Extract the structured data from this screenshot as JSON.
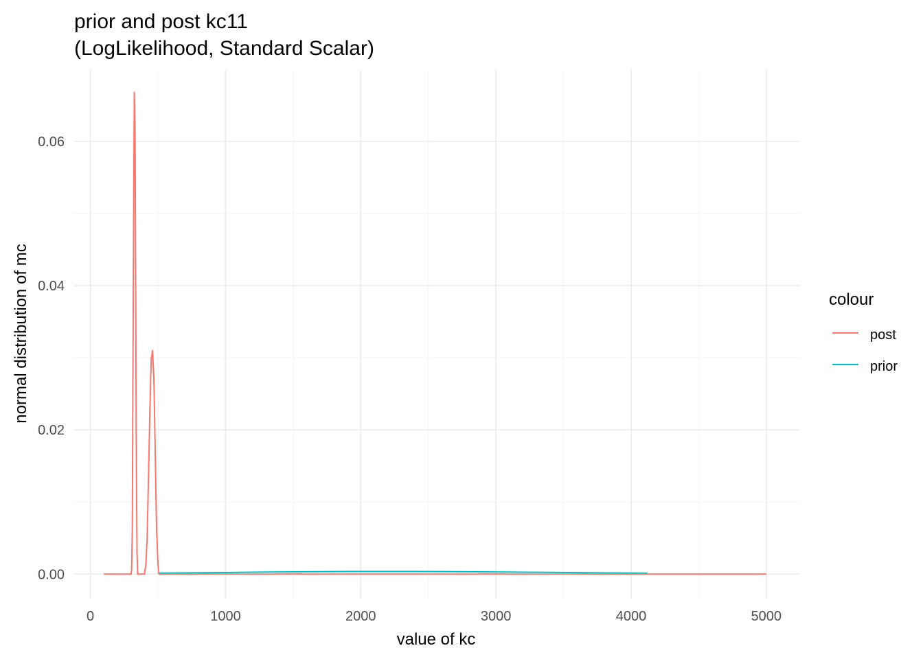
{
  "chart_data": {
    "type": "line",
    "title": "prior and post kc11",
    "subtitle": "(LogLikelihood, Standard Scalar)",
    "xlabel": "value of kc",
    "ylabel": "normal distribution of mc",
    "xlim": [
      -120,
      5250
    ],
    "ylim": [
      -0.0034,
      0.0699
    ],
    "x_ticks": [
      0,
      1000,
      2000,
      3000,
      4000,
      5000
    ],
    "x_tick_labels": [
      "0",
      "1000",
      "2000",
      "3000",
      "4000",
      "5000"
    ],
    "y_ticks": [
      0,
      0.02,
      0.04,
      0.06
    ],
    "y_tick_labels": [
      "0.00",
      "0.02",
      "0.04",
      "0.06"
    ],
    "grid": true,
    "legend": {
      "title": "colour",
      "placement": "right",
      "entries": [
        {
          "label": "post",
          "color": "#F8766D"
        },
        {
          "label": "prior",
          "color": "#00BFC4"
        }
      ]
    },
    "series": [
      {
        "name": "post",
        "color": "#F8766D",
        "x": [
          100,
          300,
          305,
          310,
          315,
          320,
          325,
          330,
          335,
          340,
          345,
          350,
          380,
          400,
          410,
          420,
          430,
          440,
          450,
          460,
          470,
          480,
          490,
          500,
          505,
          510,
          600,
          800,
          1000,
          1500,
          2000,
          3000,
          4000,
          5000
        ],
        "y": [
          0,
          0,
          0.0005,
          0.006,
          0.028,
          0.051,
          0.0668,
          0.062,
          0.041,
          0.016,
          0.003,
          0,
          0,
          0,
          0.0012,
          0.005,
          0.0135,
          0.0225,
          0.0298,
          0.031,
          0.027,
          0.0165,
          0.006,
          0.0015,
          0.0003,
          0,
          0,
          0,
          0,
          0,
          0,
          0,
          0,
          0
        ]
      },
      {
        "name": "prior",
        "color": "#00BFC4",
        "x": [
          500,
          600,
          800,
          1000,
          1200,
          1400,
          1600,
          1800,
          2000,
          2200,
          2400,
          2600,
          2800,
          3000,
          3200,
          3400,
          3600,
          3800,
          4000,
          4120
        ],
        "y": [
          0.00012,
          0.00014,
          0.00018,
          0.00022,
          0.00026,
          0.0003,
          0.00033,
          0.00035,
          0.00036,
          0.00036,
          0.00036,
          0.00035,
          0.00033,
          0.0003,
          0.00027,
          0.00024,
          0.0002,
          0.00016,
          0.00013,
          0.00011
        ]
      }
    ]
  }
}
